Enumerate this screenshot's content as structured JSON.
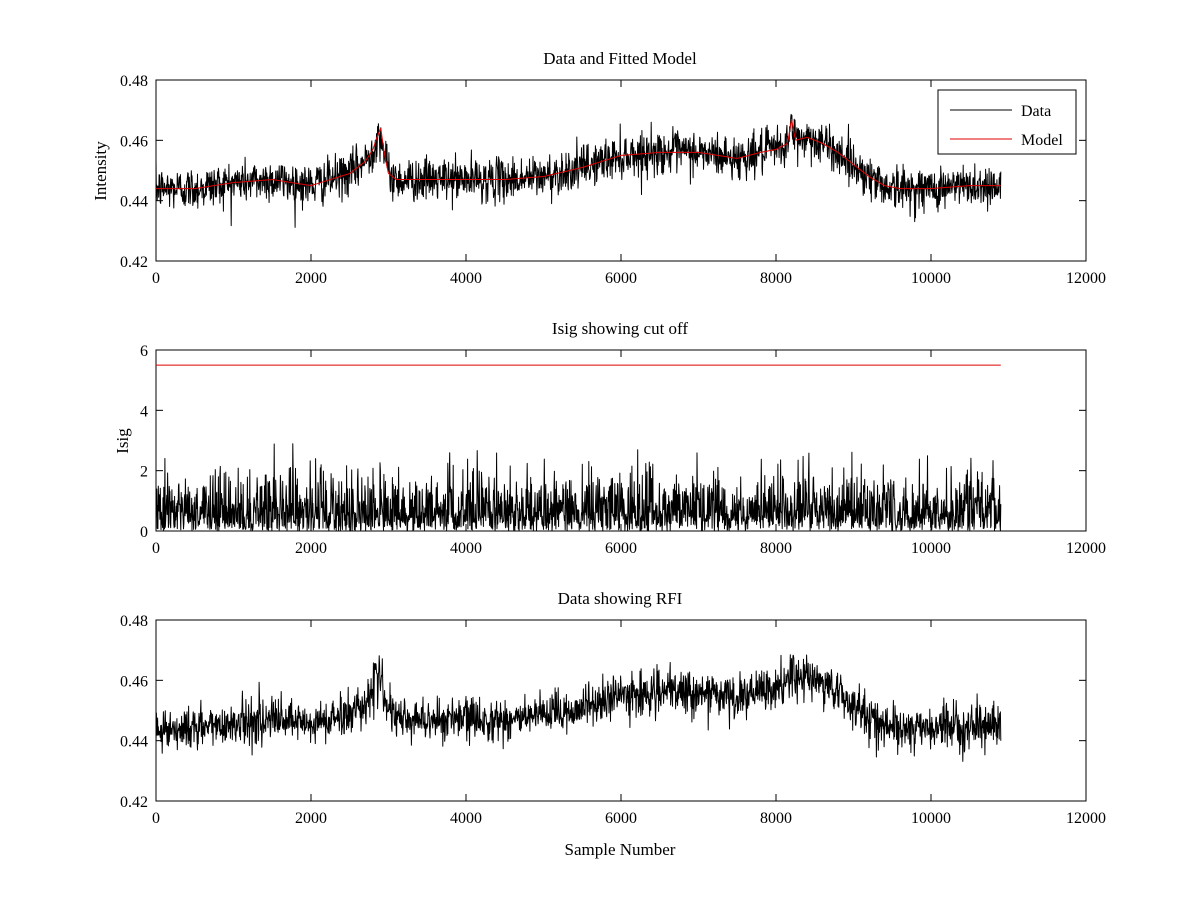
{
  "chart_data": [
    {
      "type": "line",
      "title": "Data and Fitted Model",
      "xlabel": "",
      "ylabel": "Intensity",
      "xlim": [
        0,
        12000
      ],
      "ylim": [
        0.42,
        0.48
      ],
      "xticks": [
        0,
        2000,
        4000,
        6000,
        8000,
        10000,
        12000
      ],
      "xtick_labels": [
        "0",
        "2000",
        "4000",
        "6000",
        "8000",
        "10000",
        "12000"
      ],
      "yticks": [
        0.42,
        0.44,
        0.46,
        0.48
      ],
      "ytick_labels": [
        "0.42",
        "0.44",
        "0.46",
        "0.48"
      ],
      "legend_position": "top-right",
      "series": [
        {
          "name": "Data",
          "color": "#000000",
          "style": "noisy",
          "noise_sd": 0.0035,
          "x": [
            0,
            500,
            1000,
            1500,
            2000,
            2500,
            2700,
            2800,
            2850,
            2900,
            2950,
            3000,
            3100,
            3500,
            4000,
            4500,
            5000,
            5500,
            6000,
            6500,
            7000,
            7500,
            7800,
            8000,
            8150,
            8200,
            8250,
            8400,
            8600,
            8800,
            9000,
            9200,
            9400,
            9600,
            10000,
            10500,
            10900
          ],
          "y": [
            0.444,
            0.444,
            0.446,
            0.447,
            0.445,
            0.449,
            0.453,
            0.457,
            0.461,
            0.462,
            0.455,
            0.449,
            0.447,
            0.447,
            0.447,
            0.447,
            0.448,
            0.451,
            0.455,
            0.456,
            0.456,
            0.454,
            0.456,
            0.457,
            0.459,
            0.465,
            0.46,
            0.461,
            0.459,
            0.456,
            0.452,
            0.448,
            0.445,
            0.444,
            0.444,
            0.445,
            0.445
          ]
        },
        {
          "name": "Model",
          "color": "#e00000",
          "style": "smooth",
          "x": [
            0,
            500,
            1000,
            1500,
            2000,
            2500,
            2700,
            2800,
            2850,
            2900,
            2950,
            3000,
            3100,
            3500,
            4000,
            4500,
            5000,
            5500,
            6000,
            6500,
            7000,
            7500,
            7800,
            8000,
            8150,
            8200,
            8250,
            8400,
            8600,
            8800,
            9000,
            9200,
            9400,
            9600,
            10000,
            10500,
            10900
          ],
          "y": [
            0.444,
            0.444,
            0.446,
            0.447,
            0.445,
            0.449,
            0.453,
            0.457,
            0.461,
            0.464,
            0.455,
            0.449,
            0.447,
            0.447,
            0.447,
            0.447,
            0.448,
            0.451,
            0.455,
            0.456,
            0.456,
            0.454,
            0.456,
            0.457,
            0.459,
            0.467,
            0.46,
            0.461,
            0.459,
            0.456,
            0.452,
            0.448,
            0.445,
            0.444,
            0.444,
            0.445,
            0.445
          ]
        }
      ]
    },
    {
      "type": "line",
      "title": "Isig showing cut off",
      "xlabel": "",
      "ylabel": "Isig",
      "xlim": [
        0,
        12000
      ],
      "ylim": [
        0,
        6
      ],
      "xticks": [
        0,
        2000,
        4000,
        6000,
        8000,
        10000,
        12000
      ],
      "xtick_labels": [
        "0",
        "2000",
        "4000",
        "6000",
        "8000",
        "10000",
        "12000"
      ],
      "yticks": [
        0,
        2,
        4,
        6
      ],
      "ytick_labels": [
        "0",
        "2",
        "4",
        "6"
      ],
      "series": [
        {
          "color": "#000000",
          "style": "abs-noise",
          "noise_sd": 0.9,
          "max_value": 3.7,
          "x": [
            0,
            10900
          ],
          "y": [
            0,
            0
          ]
        },
        {
          "color": "#e00000",
          "style": "smooth",
          "x": [
            0,
            10900
          ],
          "y": [
            5.5,
            5.5
          ]
        }
      ]
    },
    {
      "type": "line",
      "title": "Data showing RFI",
      "xlabel": "Sample Number",
      "ylabel": "",
      "xlim": [
        0,
        12000
      ],
      "ylim": [
        0.42,
        0.48
      ],
      "xticks": [
        0,
        2000,
        4000,
        6000,
        8000,
        10000,
        12000
      ],
      "xtick_labels": [
        "0",
        "2000",
        "4000",
        "6000",
        "8000",
        "10000",
        "12000"
      ],
      "yticks": [
        0.42,
        0.44,
        0.46,
        0.48
      ],
      "ytick_labels": [
        "0.42",
        "0.44",
        "0.46",
        "0.48"
      ],
      "series": [
        {
          "color": "#000000",
          "style": "noisy",
          "noise_sd": 0.0035,
          "x": [
            0,
            500,
            1000,
            1500,
            2000,
            2500,
            2700,
            2800,
            2850,
            2900,
            2950,
            3000,
            3100,
            3500,
            4000,
            4500,
            5000,
            5500,
            6000,
            6500,
            7000,
            7500,
            7800,
            8000,
            8150,
            8200,
            8250,
            8400,
            8600,
            8800,
            9000,
            9200,
            9400,
            9600,
            10000,
            10500,
            10900
          ],
          "y": [
            0.444,
            0.444,
            0.446,
            0.447,
            0.445,
            0.449,
            0.453,
            0.457,
            0.461,
            0.462,
            0.455,
            0.449,
            0.447,
            0.447,
            0.447,
            0.447,
            0.448,
            0.451,
            0.455,
            0.456,
            0.456,
            0.454,
            0.456,
            0.457,
            0.459,
            0.465,
            0.46,
            0.461,
            0.459,
            0.456,
            0.452,
            0.448,
            0.445,
            0.444,
            0.444,
            0.445,
            0.445
          ]
        }
      ]
    }
  ]
}
